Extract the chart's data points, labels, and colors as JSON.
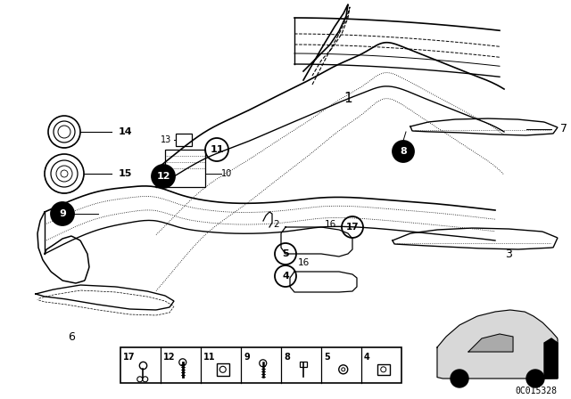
{
  "bg_color": "#ffffff",
  "line_color": "#000000",
  "fig_width": 6.4,
  "fig_height": 4.48,
  "dpi": 100,
  "diagram_id": "0C015328"
}
